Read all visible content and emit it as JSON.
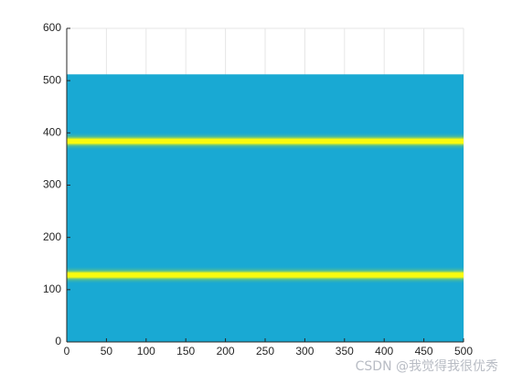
{
  "chart_data": {
    "type": "heatmap",
    "xlim": [
      0,
      500
    ],
    "ylim": [
      0,
      600
    ],
    "xticks": [
      0,
      50,
      100,
      150,
      200,
      250,
      300,
      350,
      400,
      450,
      500
    ],
    "yticks": [
      0,
      100,
      200,
      300,
      400,
      500,
      600
    ],
    "grid": true,
    "image_ylim": [
      0,
      512
    ],
    "background_color": "#19a9d3",
    "bands": [
      128,
      384
    ],
    "band_color": "#f9fb0e",
    "watermark": "CSDN @我觉得我很优秀"
  }
}
